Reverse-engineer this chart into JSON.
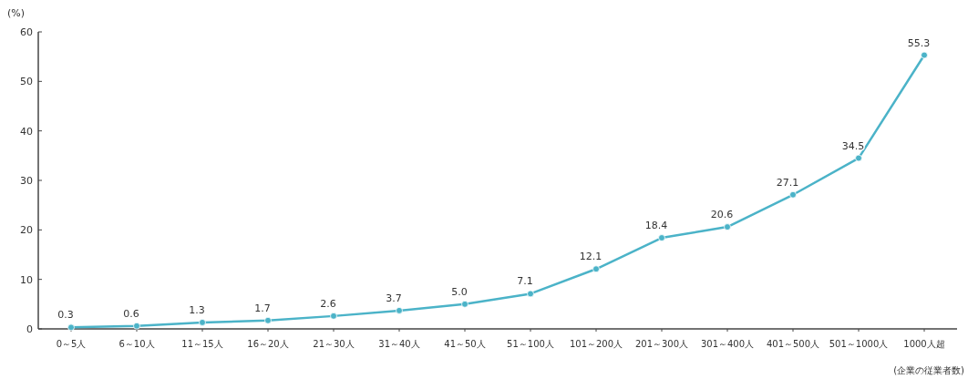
{
  "chart_data": {
    "type": "line",
    "ylabel": "(%)",
    "xlabel": "(企業の従業者数)",
    "categories": [
      "0～5人",
      "6～10人",
      "11～15人",
      "16～20人",
      "21～30人",
      "31～40人",
      "41～50人",
      "51～100人",
      "101～200人",
      "201～300人",
      "301～400人",
      "401～500人",
      "501～1000人",
      "1000人超"
    ],
    "series": [
      {
        "color": "#4bb3c8",
        "values": [
          0.3,
          0.6,
          1.3,
          1.7,
          2.6,
          3.7,
          5.0,
          7.1,
          12.1,
          18.4,
          20.6,
          27.1,
          34.5,
          55.3
        ]
      }
    ],
    "value_labels": [
      "0.3",
      "0.6",
      "1.3",
      "1.7",
      "2.6",
      "3.7",
      "5.0",
      "7.1",
      "12.1",
      "18.4",
      "20.6",
      "27.1",
      "34.5",
      "55.3"
    ],
    "ylim": [
      0,
      60
    ],
    "yticks": [
      0,
      10,
      20,
      30,
      40,
      50,
      60
    ],
    "grid": false,
    "marker": "circle",
    "line_style": "solid"
  }
}
